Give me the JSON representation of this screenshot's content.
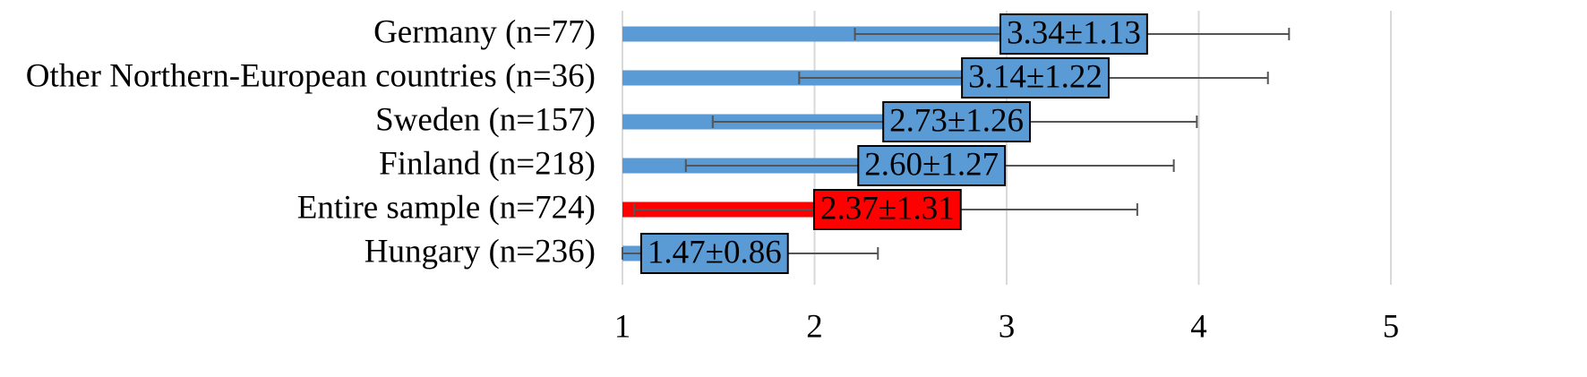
{
  "chart_data": {
    "type": "bar",
    "orientation": "horizontal",
    "categories": [
      "Germany (n=77)",
      "Other Northern-European countries (n=36)",
      "Sweden (n=157)",
      "Finland (n=218)",
      "Entire sample (n=724)",
      "Hungary (n=236)"
    ],
    "values": [
      3.34,
      3.14,
      2.73,
      2.6,
      2.37,
      1.47
    ],
    "error": [
      1.13,
      1.22,
      1.26,
      1.27,
      1.31,
      0.86
    ],
    "data_labels": [
      "3.34±1.13",
      "3.14±1.22",
      "2.73±1.26",
      "2.60±1.27",
      "2.37±1.31",
      "1.47±0.86"
    ],
    "highlight": [
      false,
      false,
      false,
      false,
      true,
      false
    ],
    "xlim": [
      1,
      5
    ],
    "x_ticks": [
      "1",
      "2",
      "3",
      "4",
      "5"
    ],
    "grid": true,
    "title": "",
    "xlabel": "",
    "ylabel": "",
    "colors": {
      "bar": "#5b9bd5",
      "highlight": "#ff0000",
      "error_bar": "#555555",
      "grid": "#d9d9d9",
      "label_border": "#000000"
    }
  }
}
